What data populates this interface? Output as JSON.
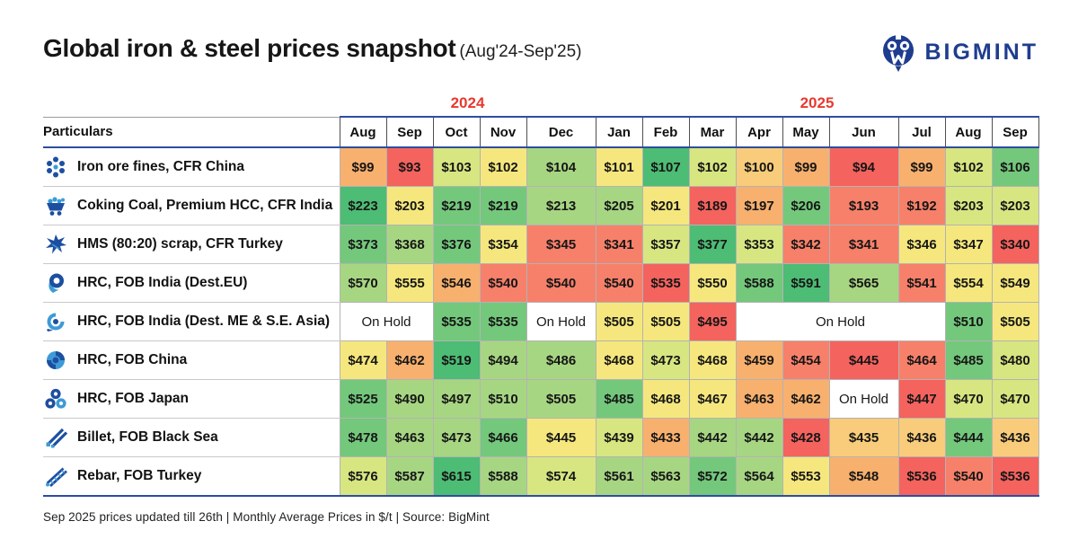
{
  "header": {
    "title": "Global iron & steel prices snapshot",
    "subtitle": "(Aug'24-Sep'25)",
    "brand": "BIGMINT"
  },
  "colors": {
    "year_red": "#e8392f",
    "blue_line": "#2e4da0",
    "brand_navy": "#1e3d8f",
    "icon_blue_dark": "#1d4fa1",
    "icon_blue_light": "#3d9bd6",
    "cell_palette": {
      "g1": "#4dbc74",
      "g2": "#74c87c",
      "g3": "#a7d683",
      "g4": "#d7e681",
      "y": "#f5e77d",
      "o1": "#f8cc7a",
      "o2": "#f8b06e",
      "s": "#f7806a",
      "r": "#f4635e",
      "hold": "#ffffff"
    }
  },
  "chart_data": {
    "type": "table",
    "title": "Global iron & steel prices snapshot (Aug'24-Sep'25)",
    "unit": "Monthly Average Prices in $/t",
    "particulars_header": "Particulars",
    "year_groups": [
      {
        "label": "2024",
        "cols": 5
      },
      {
        "label": "2025",
        "cols": 9
      }
    ],
    "months": [
      "Aug",
      "Sep",
      "Oct",
      "Nov",
      "Dec",
      "Jan",
      "Feb",
      "Mar",
      "Apr",
      "May",
      "Jun",
      "Jul",
      "Aug",
      "Sep"
    ],
    "wide_columns": [
      4,
      10
    ],
    "rows": [
      {
        "label": "Iron ore fines, CFR China",
        "icon": "iron-ore-icon",
        "cells": [
          {
            "v": "$99",
            "c": "o2"
          },
          {
            "v": "$93",
            "c": "r"
          },
          {
            "v": "$103",
            "c": "g4"
          },
          {
            "v": "$102",
            "c": "y"
          },
          {
            "v": "$104",
            "c": "g3"
          },
          {
            "v": "$101",
            "c": "y"
          },
          {
            "v": "$107",
            "c": "g1"
          },
          {
            "v": "$102",
            "c": "g4"
          },
          {
            "v": "$100",
            "c": "o1"
          },
          {
            "v": "$99",
            "c": "o2"
          },
          {
            "v": "$94",
            "c": "r"
          },
          {
            "v": "$99",
            "c": "o2"
          },
          {
            "v": "$102",
            "c": "g4"
          },
          {
            "v": "$106",
            "c": "g2"
          }
        ]
      },
      {
        "label": "Coking Coal, Premium HCC, CFR India",
        "icon": "coal-cart-icon",
        "cells": [
          {
            "v": "$223",
            "c": "g1"
          },
          {
            "v": "$203",
            "c": "y"
          },
          {
            "v": "$219",
            "c": "g2"
          },
          {
            "v": "$219",
            "c": "g2"
          },
          {
            "v": "$213",
            "c": "g3"
          },
          {
            "v": "$205",
            "c": "g3"
          },
          {
            "v": "$201",
            "c": "y"
          },
          {
            "v": "$189",
            "c": "r"
          },
          {
            "v": "$197",
            "c": "o2"
          },
          {
            "v": "$206",
            "c": "g2"
          },
          {
            "v": "$193",
            "c": "s"
          },
          {
            "v": "$192",
            "c": "s"
          },
          {
            "v": "$203",
            "c": "g4"
          },
          {
            "v": "$203",
            "c": "g4"
          }
        ]
      },
      {
        "label": "HMS (80:20) scrap, CFR Turkey",
        "icon": "scrap-icon",
        "cells": [
          {
            "v": "$373",
            "c": "g2"
          },
          {
            "v": "$368",
            "c": "g3"
          },
          {
            "v": "$376",
            "c": "g2"
          },
          {
            "v": "$354",
            "c": "y"
          },
          {
            "v": "$345",
            "c": "s"
          },
          {
            "v": "$341",
            "c": "s"
          },
          {
            "v": "$357",
            "c": "g4"
          },
          {
            "v": "$377",
            "c": "g1"
          },
          {
            "v": "$353",
            "c": "g4"
          },
          {
            "v": "$342",
            "c": "s"
          },
          {
            "v": "$341",
            "c": "s"
          },
          {
            "v": "$346",
            "c": "y"
          },
          {
            "v": "$347",
            "c": "y"
          },
          {
            "v": "$340",
            "c": "r"
          }
        ]
      },
      {
        "label": "HRC, FOB India (Dest.EU)",
        "icon": "coil-icon",
        "cells": [
          {
            "v": "$570",
            "c": "g3"
          },
          {
            "v": "$555",
            "c": "y"
          },
          {
            "v": "$546",
            "c": "o2"
          },
          {
            "v": "$540",
            "c": "s"
          },
          {
            "v": "$540",
            "c": "s"
          },
          {
            "v": "$540",
            "c": "s"
          },
          {
            "v": "$535",
            "c": "r"
          },
          {
            "v": "$550",
            "c": "y"
          },
          {
            "v": "$588",
            "c": "g2"
          },
          {
            "v": "$591",
            "c": "g1"
          },
          {
            "v": "$565",
            "c": "g3"
          },
          {
            "v": "$541",
            "c": "s"
          },
          {
            "v": "$554",
            "c": "y"
          },
          {
            "v": "$549",
            "c": "y"
          }
        ]
      },
      {
        "label": "HRC, FOB India (Dest. ME & S.E. Asia)",
        "icon": "coil-swirl-icon",
        "cells": [
          {
            "v": "On Hold",
            "c": "hold",
            "span": 2
          },
          {
            "v": "$535",
            "c": "g2"
          },
          {
            "v": "$535",
            "c": "g2"
          },
          {
            "v": "On Hold",
            "c": "hold"
          },
          {
            "v": "$505",
            "c": "y"
          },
          {
            "v": "$505",
            "c": "y"
          },
          {
            "v": "$495",
            "c": "r"
          },
          {
            "v": "On Hold",
            "c": "hold",
            "span": 4
          },
          {
            "v": "$510",
            "c": "g2"
          },
          {
            "v": "$505",
            "c": "y"
          }
        ]
      },
      {
        "label": "HRC, FOB China",
        "icon": "coil-end-icon",
        "cells": [
          {
            "v": "$474",
            "c": "y"
          },
          {
            "v": "$462",
            "c": "o2"
          },
          {
            "v": "$519",
            "c": "g1"
          },
          {
            "v": "$494",
            "c": "g3"
          },
          {
            "v": "$486",
            "c": "g3"
          },
          {
            "v": "$468",
            "c": "y"
          },
          {
            "v": "$473",
            "c": "g4"
          },
          {
            "v": "$468",
            "c": "y"
          },
          {
            "v": "$459",
            "c": "o2"
          },
          {
            "v": "$454",
            "c": "s"
          },
          {
            "v": "$445",
            "c": "r"
          },
          {
            "v": "$464",
            "c": "s"
          },
          {
            "v": "$485",
            "c": "g2"
          },
          {
            "v": "$480",
            "c": "g4"
          }
        ]
      },
      {
        "label": "HRC, FOB Japan",
        "icon": "coil-stack-icon",
        "cells": [
          {
            "v": "$525",
            "c": "g2"
          },
          {
            "v": "$490",
            "c": "g3"
          },
          {
            "v": "$497",
            "c": "g3"
          },
          {
            "v": "$510",
            "c": "g3"
          },
          {
            "v": "$505",
            "c": "g3"
          },
          {
            "v": "$485",
            "c": "g2"
          },
          {
            "v": "$468",
            "c": "y"
          },
          {
            "v": "$467",
            "c": "y"
          },
          {
            "v": "$463",
            "c": "o2"
          },
          {
            "v": "$462",
            "c": "o2"
          },
          {
            "v": "On Hold",
            "c": "hold"
          },
          {
            "v": "$447",
            "c": "r"
          },
          {
            "v": "$470",
            "c": "g4"
          },
          {
            "v": "$470",
            "c": "g4"
          }
        ]
      },
      {
        "label": "Billet, FOB Black Sea",
        "icon": "billet-icon",
        "cells": [
          {
            "v": "$478",
            "c": "g2"
          },
          {
            "v": "$463",
            "c": "g3"
          },
          {
            "v": "$473",
            "c": "g3"
          },
          {
            "v": "$466",
            "c": "g2"
          },
          {
            "v": "$445",
            "c": "y"
          },
          {
            "v": "$439",
            "c": "g4"
          },
          {
            "v": "$433",
            "c": "o2"
          },
          {
            "v": "$442",
            "c": "g3"
          },
          {
            "v": "$442",
            "c": "g3"
          },
          {
            "v": "$428",
            "c": "r"
          },
          {
            "v": "$435",
            "c": "o1"
          },
          {
            "v": "$436",
            "c": "o1"
          },
          {
            "v": "$444",
            "c": "g2"
          },
          {
            "v": "$436",
            "c": "o1"
          }
        ]
      },
      {
        "label": "Rebar, FOB Turkey",
        "icon": "rebar-icon",
        "cells": [
          {
            "v": "$576",
            "c": "g4"
          },
          {
            "v": "$587",
            "c": "g3"
          },
          {
            "v": "$615",
            "c": "g1"
          },
          {
            "v": "$588",
            "c": "g3"
          },
          {
            "v": "$574",
            "c": "g4"
          },
          {
            "v": "$561",
            "c": "g3"
          },
          {
            "v": "$563",
            "c": "g3"
          },
          {
            "v": "$572",
            "c": "g2"
          },
          {
            "v": "$564",
            "c": "g3"
          },
          {
            "v": "$553",
            "c": "y"
          },
          {
            "v": "$548",
            "c": "o2"
          },
          {
            "v": "$536",
            "c": "r"
          },
          {
            "v": "$540",
            "c": "s"
          },
          {
            "v": "$536",
            "c": "r"
          }
        ]
      }
    ]
  },
  "footer": {
    "text": "Sep 2025 prices updated till 26th  |  Monthly Average Prices in $/t  |  Source: BigMint"
  }
}
